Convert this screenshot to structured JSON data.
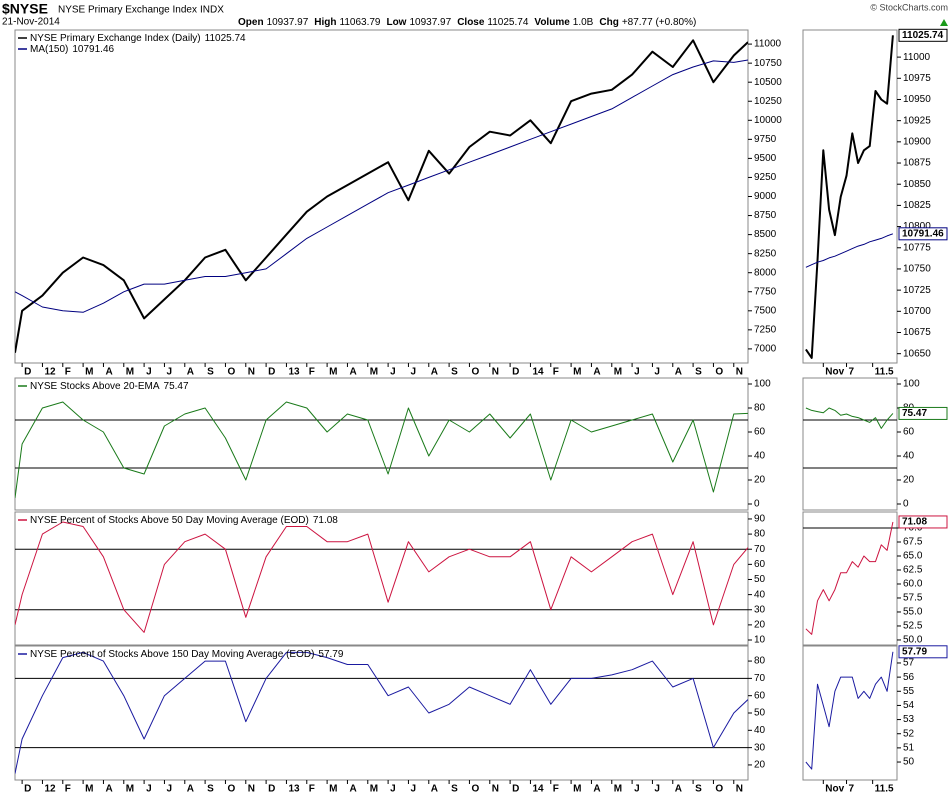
{
  "header": {
    "symbol": "$NYSE",
    "name": "NYSE Primary Exchange Index",
    "exchange": "INDX",
    "date": "21-Nov-2014",
    "copyright": "© StockCharts.com",
    "quote": [
      {
        "label": "Open",
        "value": "10937.97"
      },
      {
        "label": "High",
        "value": "11063.79"
      },
      {
        "label": "Low",
        "value": "10937.97"
      },
      {
        "label": "Close",
        "value": "11025.74"
      },
      {
        "label": "Volume",
        "value": "1.0B"
      },
      {
        "label": "Chg",
        "value": "+87.77 (+0.80%)"
      }
    ]
  },
  "chart_data": [
    {
      "type": "line",
      "xlim": [
        -0.35,
        35.7
      ],
      "ylim": [
        6815,
        11185
      ],
      "yticks": [
        7000,
        7250,
        7500,
        7750,
        8000,
        8250,
        8500,
        8750,
        9000,
        9250,
        9500,
        9750,
        10000,
        10250,
        10500,
        10750,
        11000
      ],
      "xticks": [
        {
          "value": 0,
          "label": "D"
        },
        {
          "value": 1,
          "label": "12"
        },
        {
          "value": 2,
          "label": "F"
        },
        {
          "value": 3,
          "label": "M"
        },
        {
          "value": 4,
          "label": "A"
        },
        {
          "value": 5,
          "label": "M"
        },
        {
          "value": 6,
          "label": "J"
        },
        {
          "value": 7,
          "label": "J"
        },
        {
          "value": 8,
          "label": "A"
        },
        {
          "value": 9,
          "label": "S"
        },
        {
          "value": 10,
          "label": "O"
        },
        {
          "value": 11,
          "label": "N"
        },
        {
          "value": 12,
          "label": "D"
        },
        {
          "value": 13,
          "label": "13"
        },
        {
          "value": 14,
          "label": "F"
        },
        {
          "value": 15,
          "label": "M"
        },
        {
          "value": 16,
          "label": "A"
        },
        {
          "value": 17,
          "label": "M"
        },
        {
          "value": 18,
          "label": "J"
        },
        {
          "value": 19,
          "label": "J"
        },
        {
          "value": 20,
          "label": "A"
        },
        {
          "value": 21,
          "label": "S"
        },
        {
          "value": 22,
          "label": "O"
        },
        {
          "value": 23,
          "label": "N"
        },
        {
          "value": 24,
          "label": "D"
        },
        {
          "value": 25,
          "label": "14"
        },
        {
          "value": 26,
          "label": "F"
        },
        {
          "value": 27,
          "label": "M"
        },
        {
          "value": 28,
          "label": "A"
        },
        {
          "value": 29,
          "label": "M"
        },
        {
          "value": 30,
          "label": "J"
        },
        {
          "value": 31,
          "label": "J"
        },
        {
          "value": 32,
          "label": "A"
        },
        {
          "value": 33,
          "label": "S"
        },
        {
          "value": 34,
          "label": "O"
        },
        {
          "value": 35,
          "label": "N"
        }
      ],
      "x": [
        -0.35,
        0,
        1,
        2,
        3,
        4,
        5,
        6,
        7,
        8,
        9,
        10,
        11,
        12,
        13,
        14,
        15,
        16,
        17,
        18,
        19,
        20,
        21,
        22,
        23,
        24,
        25,
        26,
        27,
        28,
        29,
        30,
        31,
        32,
        33,
        34,
        35,
        35.7
      ],
      "series": [
        {
          "name": "NYSE Primary Exchange Index (Daily)",
          "color": "#000000",
          "width": 2,
          "values": [
            6950,
            7500,
            7700,
            8000,
            8200,
            8100,
            7900,
            7400,
            7650,
            7900,
            8200,
            8300,
            7900,
            8200,
            8500,
            8800,
            9000,
            9150,
            9300,
            9450,
            8950,
            9600,
            9300,
            9650,
            9850,
            9800,
            10000,
            9700,
            10250,
            10350,
            10400,
            10600,
            10900,
            10700,
            11050,
            10500,
            10850,
            11025.74
          ]
        },
        {
          "name": "MA(150)",
          "color": "#000080",
          "width": 1,
          "values": [
            7750,
            7700,
            7550,
            7500,
            7480,
            7600,
            7750,
            7850,
            7850,
            7900,
            7950,
            7950,
            8000,
            8050,
            8250,
            8450,
            8600,
            8750,
            8900,
            9050,
            9150,
            9250,
            9350,
            9450,
            9550,
            9650,
            9750,
            9850,
            9950,
            10050,
            10150,
            10300,
            10450,
            10600,
            10700,
            10780,
            10760,
            10791.46
          ]
        }
      ]
    },
    {
      "type": "line",
      "xlim": [
        -0.35,
        35.7
      ],
      "ylim": [
        -5,
        105
      ],
      "yticks": [
        0,
        20,
        40,
        60,
        80,
        100
      ],
      "hlines": [
        70,
        30
      ],
      "x": [
        -0.35,
        0,
        1,
        2,
        3,
        4,
        5,
        6,
        7,
        8,
        9,
        10,
        11,
        12,
        13,
        14,
        15,
        16,
        17,
        18,
        19,
        20,
        21,
        22,
        23,
        24,
        25,
        26,
        27,
        28,
        29,
        30,
        31,
        32,
        33,
        34,
        35,
        35.7
      ],
      "series": [
        {
          "name": "NYSE Stocks Above 20-EMA",
          "color": "#1a7a1a",
          "width": 1,
          "values": [
            5,
            50,
            80,
            85,
            70,
            60,
            30,
            25,
            65,
            75,
            80,
            55,
            20,
            70,
            85,
            80,
            60,
            75,
            70,
            25,
            80,
            40,
            70,
            60,
            75,
            55,
            75,
            20,
            70,
            60,
            65,
            70,
            75,
            35,
            70,
            10,
            75,
            75.47
          ]
        }
      ]
    },
    {
      "type": "line",
      "xlim": [
        -0.35,
        35.7
      ],
      "ylim": [
        6.7,
        94.6
      ],
      "yticks": [
        10,
        20,
        30,
        40,
        50,
        60,
        70,
        80,
        90
      ],
      "hlines": [
        70,
        30
      ],
      "x": [
        -0.35,
        0,
        1,
        2,
        3,
        4,
        5,
        6,
        7,
        8,
        9,
        10,
        11,
        12,
        13,
        14,
        15,
        16,
        17,
        18,
        19,
        20,
        21,
        22,
        23,
        24,
        25,
        26,
        27,
        28,
        29,
        30,
        31,
        32,
        33,
        34,
        35,
        35.7
      ],
      "series": [
        {
          "name": "NYSE Percent of Stocks Above 50 Day Moving Average (EOD)",
          "color": "#cc1440",
          "width": 1,
          "values": [
            20,
            40,
            80,
            88,
            85,
            65,
            30,
            15,
            60,
            75,
            80,
            70,
            25,
            65,
            85,
            85,
            75,
            75,
            80,
            35,
            75,
            55,
            65,
            70,
            65,
            65,
            75,
            30,
            65,
            55,
            65,
            75,
            80,
            40,
            75,
            20,
            60,
            71.08
          ]
        }
      ]
    },
    {
      "type": "line",
      "xlim": [
        -0.35,
        35.7
      ],
      "ylim": [
        11.3,
        88.7
      ],
      "yticks": [
        20,
        30,
        40,
        50,
        60,
        70,
        80
      ],
      "hlines": [
        70,
        30
      ],
      "xticks": [
        {
          "value": 0,
          "label": "D"
        },
        {
          "value": 1,
          "label": "12"
        },
        {
          "value": 2,
          "label": "F"
        },
        {
          "value": 3,
          "label": "M"
        },
        {
          "value": 4,
          "label": "A"
        },
        {
          "value": 5,
          "label": "M"
        },
        {
          "value": 6,
          "label": "J"
        },
        {
          "value": 7,
          "label": "J"
        },
        {
          "value": 8,
          "label": "A"
        },
        {
          "value": 9,
          "label": "S"
        },
        {
          "value": 10,
          "label": "O"
        },
        {
          "value": 11,
          "label": "N"
        },
        {
          "value": 12,
          "label": "D"
        },
        {
          "value": 13,
          "label": "13"
        },
        {
          "value": 14,
          "label": "F"
        },
        {
          "value": 15,
          "label": "M"
        },
        {
          "value": 16,
          "label": "A"
        },
        {
          "value": 17,
          "label": "M"
        },
        {
          "value": 18,
          "label": "J"
        },
        {
          "value": 19,
          "label": "J"
        },
        {
          "value": 20,
          "label": "A"
        },
        {
          "value": 21,
          "label": "S"
        },
        {
          "value": 22,
          "label": "O"
        },
        {
          "value": 23,
          "label": "N"
        },
        {
          "value": 24,
          "label": "D"
        },
        {
          "value": 25,
          "label": "14"
        },
        {
          "value": 26,
          "label": "F"
        },
        {
          "value": 27,
          "label": "M"
        },
        {
          "value": 28,
          "label": "A"
        },
        {
          "value": 29,
          "label": "M"
        },
        {
          "value": 30,
          "label": "J"
        },
        {
          "value": 31,
          "label": "J"
        },
        {
          "value": 32,
          "label": "A"
        },
        {
          "value": 33,
          "label": "S"
        },
        {
          "value": 34,
          "label": "O"
        },
        {
          "value": 35,
          "label": "N"
        }
      ],
      "x": [
        -0.35,
        0,
        1,
        2,
        3,
        4,
        5,
        6,
        7,
        8,
        9,
        10,
        11,
        12,
        13,
        14,
        15,
        16,
        17,
        18,
        19,
        20,
        21,
        22,
        23,
        24,
        25,
        26,
        27,
        28,
        29,
        30,
        31,
        32,
        33,
        34,
        35,
        35.7
      ],
      "series": [
        {
          "name": "NYSE Percent of Stocks Above 150 Day Moving Average (EOD)",
          "color": "#1a1aa0",
          "width": 1,
          "values": [
            15,
            35,
            60,
            82,
            85,
            80,
            60,
            35,
            60,
            70,
            80,
            80,
            45,
            70,
            85,
            85,
            82,
            78,
            78,
            60,
            65,
            50,
            55,
            65,
            60,
            55,
            75,
            55,
            70,
            70,
            72,
            75,
            80,
            65,
            70,
            30,
            50,
            57.79
          ]
        }
      ]
    },
    {
      "type": "line",
      "xlim": [
        -0.5,
        15.7
      ],
      "ylim": [
        10639,
        11032
      ],
      "last_value_box": true,
      "yticks": [
        10650,
        10675,
        10700,
        10725,
        10750,
        10775,
        10800,
        10825,
        10850,
        10875,
        10900,
        10925,
        10950,
        10975,
        11000
      ],
      "xticks": [
        {
          "value": 3,
          "label": "Nov"
        },
        7,
        11.5
      ],
      "x": [
        0,
        1,
        2,
        3,
        4,
        5,
        6,
        7,
        8,
        9,
        10,
        11,
        12,
        13,
        14,
        15
      ],
      "series": [
        {
          "color": "#000000",
          "width": 2,
          "values": [
            10655,
            10645,
            10760,
            10890,
            10820,
            10790,
            10835,
            10860,
            10910,
            10875,
            10890,
            10895,
            10960,
            10950,
            10945,
            11025.74
          ]
        },
        {
          "color": "#000080",
          "width": 1,
          "values": [
            10752,
            10755,
            10758,
            10760,
            10763,
            10765,
            10768,
            10771,
            10774,
            10777,
            10779,
            10782,
            10784,
            10786,
            10789,
            10791.46
          ]
        }
      ]
    },
    {
      "type": "line",
      "xlim": [
        -0.5,
        15.7
      ],
      "ylim": [
        -5,
        105
      ],
      "yticks": [
        0,
        20,
        40,
        60,
        80,
        100
      ],
      "hlines": [
        70,
        30
      ],
      "last_value_box": true,
      "x": [
        0,
        1,
        2,
        3,
        4,
        5,
        6,
        7,
        8,
        9,
        10,
        11,
        12,
        13,
        14,
        15
      ],
      "series": [
        {
          "color": "#1a7a1a",
          "width": 1,
          "values": [
            80,
            78,
            77,
            76,
            80,
            78,
            74,
            75,
            73,
            72,
            70,
            68,
            72,
            63,
            70,
            75.47
          ]
        }
      ]
    },
    {
      "type": "line",
      "xlim": [
        -0.5,
        15.7
      ],
      "ylim": [
        49.1,
        72.86
      ],
      "hlines": [
        70
      ],
      "last_value_box": true,
      "yticks": [
        {
          "value": 50,
          "label": "50.0"
        },
        {
          "value": 52.5,
          "label": "52.5"
        },
        {
          "value": 55,
          "label": "55.0"
        },
        {
          "value": 57.5,
          "label": "57.5"
        },
        {
          "value": 60,
          "label": "60.0"
        },
        {
          "value": 62.5,
          "label": "62.5"
        },
        {
          "value": 65,
          "label": "65.0"
        },
        {
          "value": 67.5,
          "label": "67.5"
        },
        {
          "value": 70,
          "label": "70.0"
        }
      ],
      "x": [
        0,
        1,
        2,
        3,
        4,
        5,
        6,
        7,
        8,
        9,
        10,
        11,
        12,
        13,
        14,
        15
      ],
      "series": [
        {
          "color": "#cc1440",
          "width": 1,
          "values": [
            52,
            51,
            57,
            59,
            57,
            59,
            62,
            62,
            64,
            63,
            65,
            64,
            64,
            67,
            66,
            71.08
          ]
        }
      ]
    },
    {
      "type": "line",
      "xlim": [
        -0.5,
        15.7
      ],
      "ylim": [
        48.73,
        58.2
      ],
      "last_value_box": true,
      "yticks": [
        50,
        51,
        52,
        53,
        54,
        55,
        56,
        57
      ],
      "xticks": [
        {
          "value": 3,
          "label": "Nov"
        },
        7,
        11.5
      ],
      "x": [
        0,
        1,
        2,
        3,
        4,
        5,
        6,
        7,
        8,
        9,
        10,
        11,
        12,
        13,
        14,
        15
      ],
      "series": [
        {
          "color": "#1a1aa0",
          "width": 1,
          "values": [
            50,
            49.5,
            55.5,
            54,
            52.5,
            55,
            56,
            56,
            56,
            54.5,
            55,
            54.5,
            55.5,
            56,
            55,
            57.79
          ]
        }
      ]
    }
  ]
}
